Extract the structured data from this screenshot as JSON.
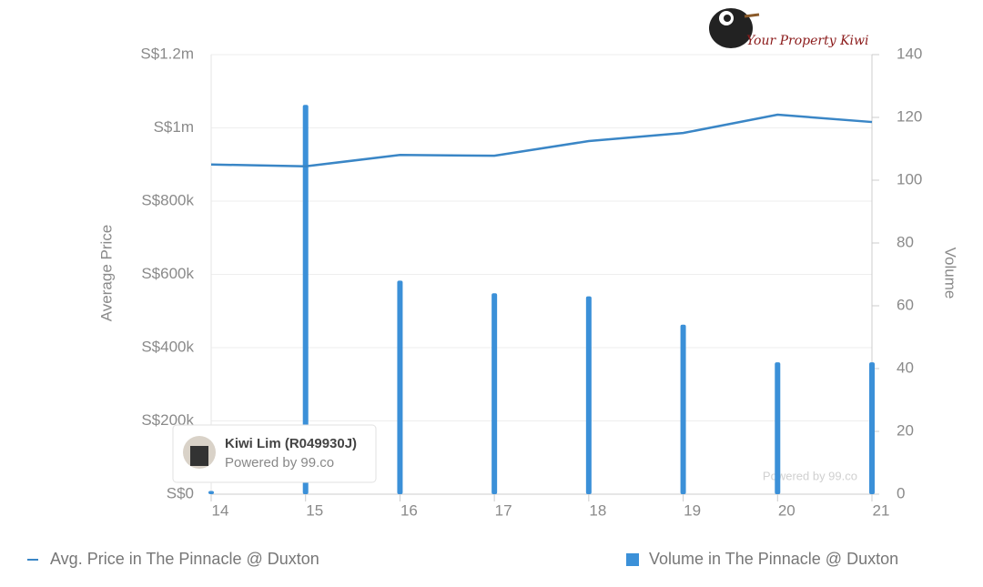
{
  "chart_data": {
    "type": "bar",
    "y_title": "Average Price",
    "y2_title": "Volume",
    "x": [
      14,
      15,
      16,
      17,
      18,
      19,
      20,
      21
    ],
    "xlim": [
      14,
      21
    ],
    "xticks": [
      14,
      15,
      16,
      17,
      18,
      19,
      20,
      21
    ],
    "ylim": [
      0,
      1200000
    ],
    "yticks": [
      {
        "value": 0,
        "label": "S$0"
      },
      {
        "value": 200000,
        "label": "S$200k"
      },
      {
        "value": 400000,
        "label": "S$400k"
      },
      {
        "value": 600000,
        "label": "S$600k"
      },
      {
        "value": 800000,
        "label": "S$800k"
      },
      {
        "value": 1000000,
        "label": "S$1m"
      },
      {
        "value": 1200000,
        "label": "S$1.2m"
      }
    ],
    "y2lim": [
      0,
      140
    ],
    "y2ticks": [
      0,
      20,
      40,
      60,
      80,
      100,
      120,
      140
    ],
    "grid": true,
    "series": [
      {
        "name": "Avg. Price in The Pinnacle @ Duxton",
        "type": "line",
        "color": "#3a86c6",
        "values": [
          900000,
          895000,
          926000,
          924000,
          964000,
          986000,
          1036000,
          1016000
        ]
      },
      {
        "name": "Volume in The Pinnacle @ Duxton",
        "type": "bar",
        "axis": "y2",
        "color": "#3b90d8",
        "values": [
          1,
          124,
          68,
          64,
          63,
          54,
          42,
          42
        ]
      }
    ],
    "watermark": "Powered by 99.co"
  },
  "logo": "Your Property Kiwi",
  "badge": {
    "name": "Kiwi Lim (R049930J)",
    "subtitle": "Powered by 99.co"
  }
}
